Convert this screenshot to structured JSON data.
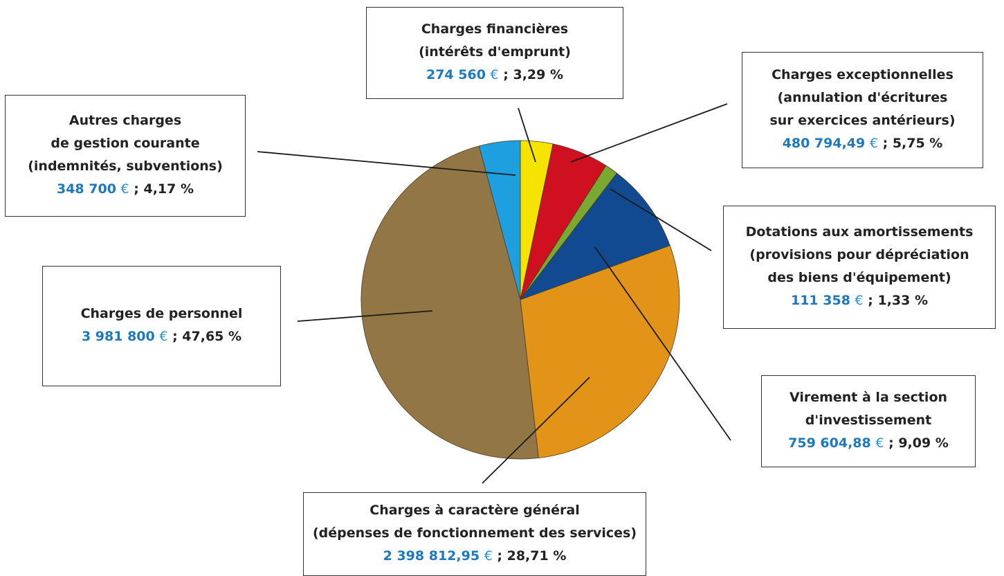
{
  "chart_data": {
    "type": "pie",
    "unit": "€",
    "slices": [
      {
        "key": "financieres",
        "label_lines": [
          "Charges financières",
          "(intérêts d'emprunt)"
        ],
        "amount": "274 560",
        "value": 274560,
        "percent": "3,29 %",
        "color": "#f5e400"
      },
      {
        "key": "exceptionnelles",
        "label_lines": [
          "Charges exceptionnelles",
          "(annulation d'écritures",
          "sur exercices antérieurs)"
        ],
        "amount": "480 794,49",
        "value": 480794.49,
        "percent": "5,75 %",
        "color": "#cf1020"
      },
      {
        "key": "dotations",
        "label_lines": [
          "Dotations aux amortissements",
          "(provisions pour dépréciation",
          "des biens d'équipement)"
        ],
        "amount": "111 358",
        "value": 111358,
        "percent": "1,33 %",
        "color": "#7aa830"
      },
      {
        "key": "virement",
        "label_lines": [
          "Virement à la section",
          "d'investissement"
        ],
        "amount": "759 604,88",
        "value": 759604.88,
        "percent": "9,09 %",
        "color": "#124a92"
      },
      {
        "key": "general",
        "label_lines": [
          "Charges à caractère général",
          "(dépenses de fonctionnement des services)"
        ],
        "amount": "2 398 812,95",
        "value": 2398812.95,
        "percent": "28,71 %",
        "color": "#e29418"
      },
      {
        "key": "personnel",
        "label_lines": [
          "Charges de personnel"
        ],
        "amount": "3 981 800",
        "value": 3981800,
        "percent": "47,65 %",
        "color": "#937645"
      },
      {
        "key": "autres",
        "label_lines": [
          "Autres charges",
          "de gestion courante",
          "(indemnités, subventions)"
        ],
        "amount": "348 700",
        "value": 348700,
        "percent": "4,17 %",
        "color": "#1ea0e0"
      }
    ]
  }
}
